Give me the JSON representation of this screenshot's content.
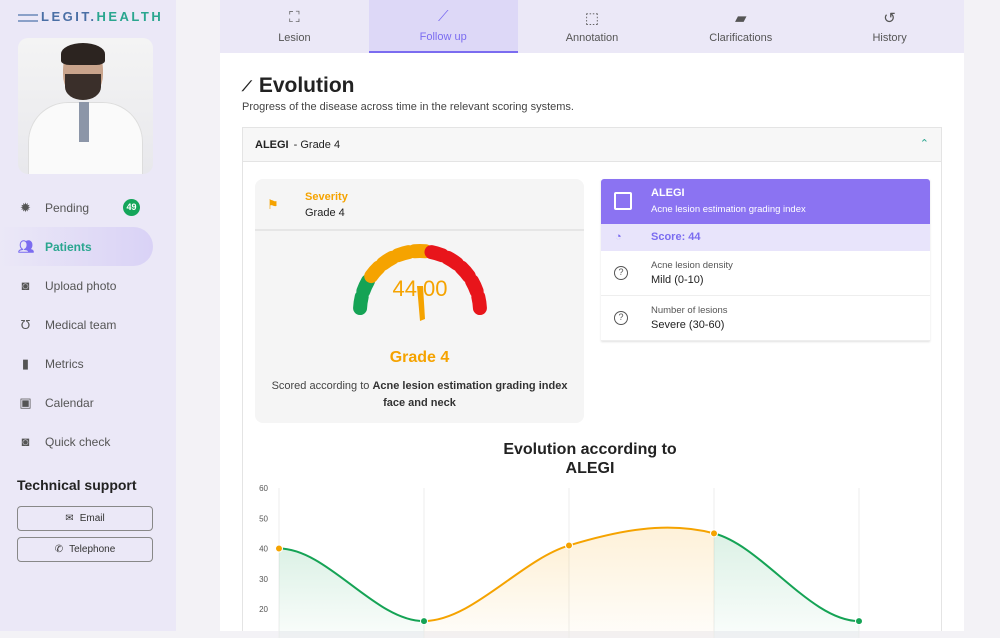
{
  "brand": {
    "name_part1": "LEGIT.",
    "name_part2": "HEALTH"
  },
  "sidebar": {
    "items": [
      {
        "label": "Pending",
        "icon": "pending-icon",
        "badge": "49"
      },
      {
        "label": "Patients",
        "icon": "patients-icon",
        "active": true
      },
      {
        "label": "Upload photo",
        "icon": "camera-plus-icon"
      },
      {
        "label": "Medical team",
        "icon": "stethoscope-icon"
      },
      {
        "label": "Metrics",
        "icon": "bar-chart-icon"
      },
      {
        "label": "Calendar",
        "icon": "calendar-icon"
      },
      {
        "label": "Quick check",
        "icon": "quick-camera-icon"
      }
    ],
    "support_title": "Technical support",
    "email_label": "Email",
    "telephone_label": "Telephone"
  },
  "tabs": [
    {
      "label": "Lesion",
      "icon": "lesion-icon"
    },
    {
      "label": "Follow up",
      "icon": "follow-up-icon",
      "active": true
    },
    {
      "label": "Annotation",
      "icon": "annotation-icon"
    },
    {
      "label": "Clarifications",
      "icon": "chat-icon"
    },
    {
      "label": "History",
      "icon": "history-icon"
    }
  ],
  "page": {
    "title": "Evolution",
    "subtitle": "Progress of the disease across time in the relevant scoring systems."
  },
  "accordion": {
    "name": "ALEGI",
    "grade": "- Grade 4"
  },
  "severity": {
    "label": "Severity",
    "value": "Grade 4",
    "gauge_value": "44.00",
    "gauge_percent": 44,
    "grade": "Grade 4",
    "scored_prefix": "Scored according to ",
    "scored_name": "Acne lesion estimation grading index face and neck"
  },
  "colors": {
    "green": "#15a355",
    "orange": "#f5a300",
    "red": "#e8151b",
    "accent": "#8b73f2"
  },
  "info": {
    "title": "ALEGI",
    "subtitle": "Acne lesion estimation grading index",
    "score": "Score: 44",
    "criteria": [
      {
        "label": "Acne lesion density",
        "value": "Mild (0-10)"
      },
      {
        "label": "Number of lesions",
        "value": "Severe (30-60)"
      }
    ]
  },
  "chart_data": {
    "type": "line",
    "title_line1": "Evolution according to",
    "title_line2": "ALEGI",
    "values": [
      40,
      16,
      41,
      45,
      16
    ],
    "yticks": [
      60,
      50,
      40,
      30,
      20
    ],
    "ylim": [
      10,
      60
    ],
    "grid": "vertical"
  }
}
